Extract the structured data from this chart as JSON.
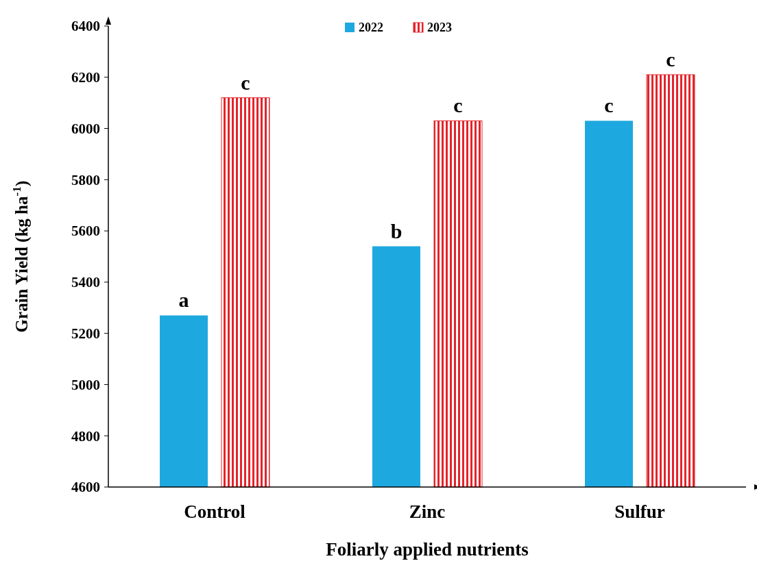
{
  "chart_data": {
    "type": "bar",
    "xlabel": "Foliarly applied nutrients",
    "ylabel": "Grain Yield (kg ha$^{-1}$)",
    "categories": [
      "Control",
      "Zinc",
      "Sulfur"
    ],
    "series": [
      {
        "name": "2022",
        "color": "#1ea8e0",
        "values": [
          5270,
          5540,
          6030
        ],
        "value_labels": [
          "a",
          "b",
          "c"
        ]
      },
      {
        "name": "2023",
        "color": "#e3242b",
        "values": [
          6120,
          6030,
          6210
        ],
        "value_labels": [
          "c",
          "c",
          "c"
        ]
      }
    ],
    "ylim": [
      4600,
      6400
    ],
    "yticks": [
      4600,
      4800,
      5000,
      5200,
      5400,
      5600,
      5800,
      6000,
      6200,
      6400
    ],
    "grid": false,
    "legend": "top"
  }
}
